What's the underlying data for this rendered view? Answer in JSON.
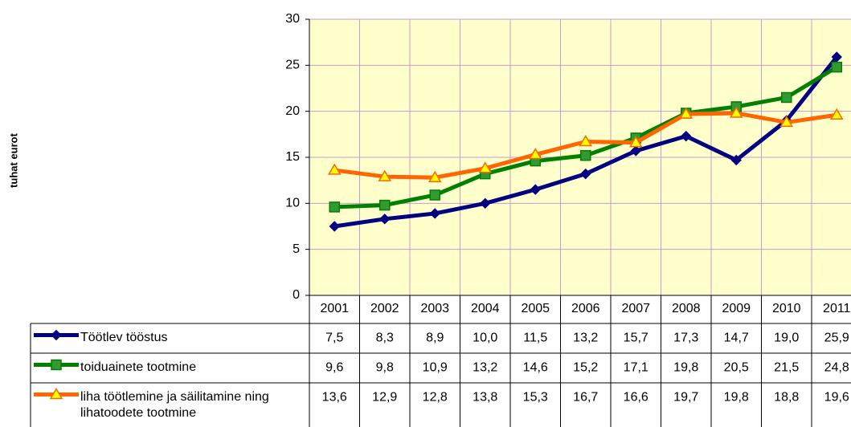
{
  "chart_data": {
    "type": "line",
    "y_label": "tuhat eurot",
    "categories": [
      "2001",
      "2002",
      "2003",
      "2004",
      "2005",
      "2006",
      "2007",
      "2008",
      "2009",
      "2010",
      "2011"
    ],
    "ylim": [
      0,
      30
    ],
    "yticks": [
      0,
      5,
      10,
      15,
      20,
      25,
      30
    ],
    "grid": true,
    "series": [
      {
        "name": "Töötlev tööstus",
        "color": "#000080",
        "marker": "diamond",
        "values": [
          7.5,
          8.3,
          8.9,
          10.0,
          11.5,
          13.2,
          15.7,
          17.3,
          14.7,
          19.0,
          25.9
        ],
        "value_labels": [
          "7,5",
          "8,3",
          "8,9",
          "10,0",
          "11,5",
          "13,2",
          "15,7",
          "17,3",
          "14,7",
          "19,0",
          "25,9"
        ]
      },
      {
        "name": "toiduainete tootmine",
        "color": "#008000",
        "marker": "square",
        "values": [
          9.6,
          9.8,
          10.9,
          13.2,
          14.6,
          15.2,
          17.1,
          19.8,
          20.5,
          21.5,
          24.8
        ],
        "value_labels": [
          "9,6",
          "9,8",
          "10,9",
          "13,2",
          "14,6",
          "15,2",
          "17,1",
          "19,8",
          "20,5",
          "21,5",
          "24,8"
        ]
      },
      {
        "name": "liha töötlemine ja säilitamine ning lihatoodete tootmine",
        "color": "#FF6600",
        "marker": "triangle",
        "values": [
          13.6,
          12.9,
          12.8,
          13.8,
          15.3,
          16.7,
          16.6,
          19.7,
          19.8,
          18.8,
          19.6
        ],
        "value_labels": [
          "13,6",
          "12,9",
          "12,8",
          "13,8",
          "15,3",
          "16,7",
          "16,6",
          "19,7",
          "19,8",
          "18,8",
          "19,6"
        ]
      }
    ]
  }
}
